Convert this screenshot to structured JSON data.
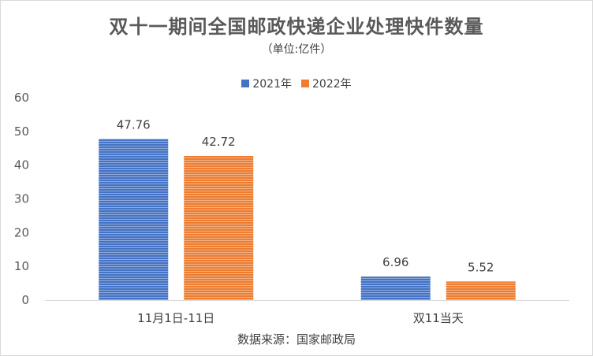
{
  "chart_data": {
    "type": "bar",
    "title": "双十一期间全国邮政快递企业处理快件数量",
    "subtitle": "（单位:亿件）",
    "categories": [
      "11月1日-11日",
      "双11当天"
    ],
    "series": [
      {
        "name": "2021年",
        "values": [
          47.76,
          6.96
        ],
        "color": "#4472c4"
      },
      {
        "name": "2022年",
        "values": [
          42.72,
          5.52
        ],
        "color": "#ed7d31"
      }
    ],
    "ylim": [
      0,
      60
    ],
    "yticks": [
      "0",
      "10",
      "20",
      "30",
      "40",
      "50",
      "60"
    ],
    "data_labels": [
      [
        "47.76",
        "6.96"
      ],
      [
        "42.72",
        "5.52"
      ]
    ],
    "legend_position": "top",
    "grid": false
  },
  "source_note": "数据来源：国家邮政局"
}
